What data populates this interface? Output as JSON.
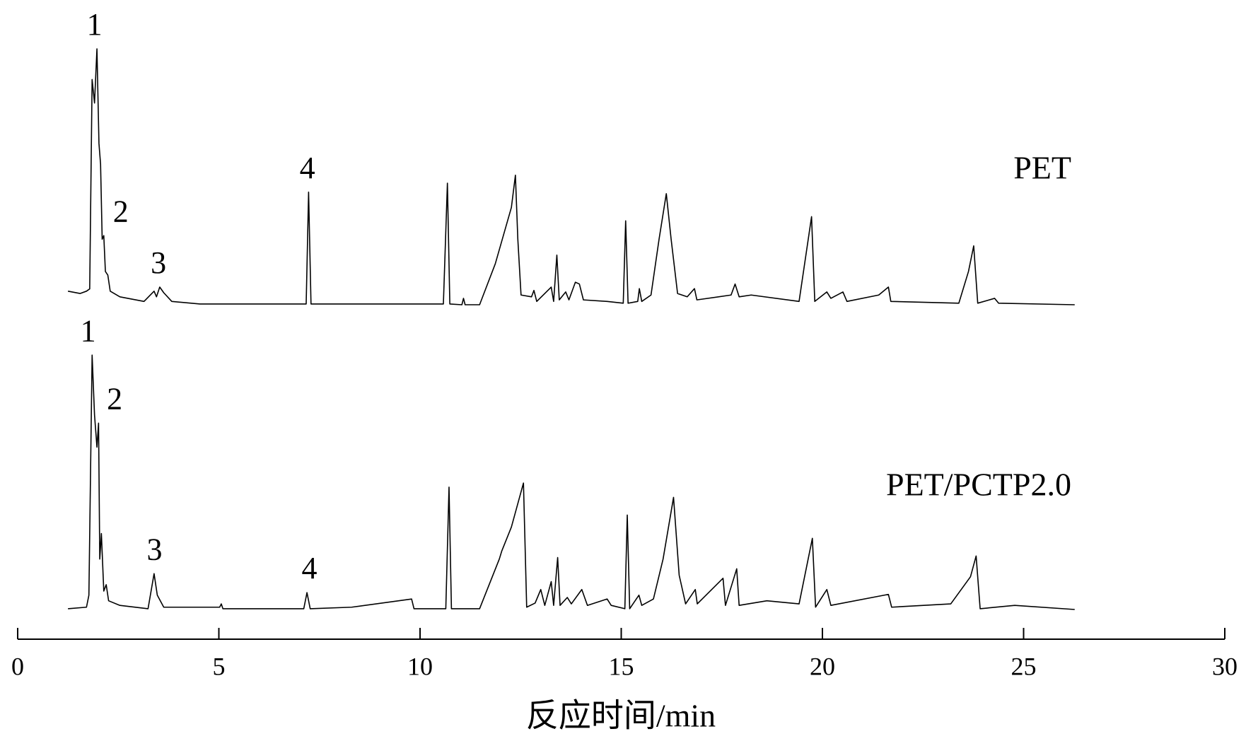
{
  "chart_data": {
    "type": "line",
    "xlabel": "反应时间/min",
    "xlim": [
      0,
      30
    ],
    "xticks": [
      0,
      5,
      10,
      15,
      20,
      25,
      30
    ],
    "ylim": [
      0,
      100
    ],
    "color": "#000000",
    "series": [
      {
        "name": "PET",
        "x": [
          1.25,
          1.55,
          1.71,
          1.79,
          1.85,
          1.91,
          1.97,
          2.02,
          2.06,
          2.1,
          2.14,
          2.18,
          2.24,
          2.3,
          2.54,
          3.14,
          3.39,
          3.45,
          3.53,
          3.63,
          3.83,
          4.53,
          6.71,
          7.17,
          7.23,
          7.29,
          10.58,
          10.68,
          10.74,
          11.04,
          11.08,
          11.12,
          11.48,
          11.87,
          12.27,
          12.37,
          12.43,
          12.51,
          12.77,
          12.83,
          12.9,
          13.26,
          13.32,
          13.4,
          13.46,
          13.62,
          13.7,
          13.86,
          13.96,
          14.06,
          14.65,
          15.05,
          15.11,
          15.17,
          15.41,
          15.45,
          15.51,
          15.74,
          15.94,
          16.12,
          16.24,
          16.4,
          16.64,
          16.82,
          16.88,
          17.73,
          17.83,
          17.93,
          18.23,
          19.42,
          19.73,
          19.81,
          20.11,
          20.21,
          20.51,
          20.61,
          21.4,
          21.64,
          21.7,
          23.39,
          23.63,
          23.76,
          23.86,
          24.28,
          24.38,
          26.27
        ],
        "values": [
          5.3,
          4.4,
          5.3,
          6.2,
          88,
          78.8,
          100,
          63,
          55,
          25.6,
          27,
          13,
          11.6,
          5.3,
          3.1,
          1.3,
          5.3,
          3.1,
          6.9,
          4.7,
          1.3,
          0.3,
          0.3,
          0.3,
          44,
          0.3,
          0.3,
          47.5,
          0.3,
          0,
          2.5,
          0,
          0,
          16,
          38,
          50.6,
          25.6,
          3.8,
          3.1,
          5.6,
          1.3,
          6.9,
          1.3,
          19.4,
          1.9,
          5,
          1.9,
          8.8,
          8.1,
          1.9,
          1.3,
          0.6,
          32.8,
          0.6,
          1.3,
          6.3,
          1.3,
          3.8,
          25.6,
          43.4,
          25.6,
          4.4,
          3.1,
          6.3,
          1.9,
          3.8,
          8.1,
          3.1,
          3.8,
          1.3,
          34.4,
          1.3,
          5,
          2.5,
          5,
          1.3,
          3.8,
          6.9,
          1.3,
          0.6,
          13,
          23,
          0.6,
          2.5,
          0.6,
          0
        ],
        "peaks": [
          {
            "label": "1",
            "x": 1.91
          },
          {
            "label": "2",
            "x": 2.35
          },
          {
            "label": "3",
            "x": 3.5
          },
          {
            "label": "4",
            "x": 7.2
          }
        ]
      },
      {
        "name": "PET/PCTP2.0",
        "x": [
          1.25,
          1.71,
          1.77,
          1.85,
          1.91,
          1.97,
          2.01,
          2.04,
          2.08,
          2.14,
          2.2,
          2.26,
          2.54,
          3.24,
          3.39,
          3.47,
          3.63,
          5.02,
          5.06,
          5.1,
          7.11,
          7.19,
          7.27,
          8.3,
          9.79,
          9.85,
          10.64,
          10.72,
          10.78,
          11.48,
          11.97,
          12.03,
          12.27,
          12.57,
          12.65,
          12.86,
          13.0,
          13.1,
          13.26,
          13.32,
          13.42,
          13.48,
          13.66,
          13.76,
          14.02,
          14.16,
          14.65,
          14.75,
          15.09,
          15.15,
          15.21,
          15.44,
          15.51,
          15.8,
          16.04,
          16.3,
          16.44,
          16.6,
          16.84,
          16.89,
          17.53,
          17.59,
          17.87,
          17.93,
          18.62,
          19.42,
          19.75,
          19.83,
          20.11,
          20.21,
          21.64,
          21.72,
          23.19,
          23.68,
          23.82,
          23.92,
          24.78,
          26.27
        ],
        "values": [
          0.3,
          0.9,
          5.6,
          99.4,
          76,
          63.4,
          72.8,
          19.7,
          29.7,
          7.2,
          9.7,
          3.4,
          1.6,
          0.3,
          14,
          5.6,
          0.9,
          0.9,
          2.2,
          0.3,
          0.3,
          6.6,
          0.3,
          0.9,
          4.1,
          0.3,
          0.3,
          47.8,
          0.3,
          0.3,
          19.7,
          22.8,
          32.2,
          49.4,
          0.9,
          2.5,
          7.8,
          1.6,
          10.9,
          1.6,
          20.3,
          1.6,
          4.7,
          2.2,
          7.8,
          1.6,
          4.1,
          1.6,
          0.3,
          36.9,
          0.3,
          5.6,
          1.6,
          4.1,
          19.7,
          43.8,
          13.4,
          2.2,
          7.8,
          2.2,
          12.2,
          1.6,
          15.9,
          1.6,
          3.4,
          2.2,
          27.8,
          0.9,
          7.8,
          1.6,
          5.9,
          0.9,
          2.2,
          12.8,
          20.9,
          0.3,
          1.6,
          0
        ],
        "peaks": [
          {
            "label": "1",
            "x": 1.75
          },
          {
            "label": "2",
            "x": 2.2
          },
          {
            "label": "3",
            "x": 3.4
          },
          {
            "label": "4",
            "x": 7.25
          }
        ]
      }
    ]
  }
}
